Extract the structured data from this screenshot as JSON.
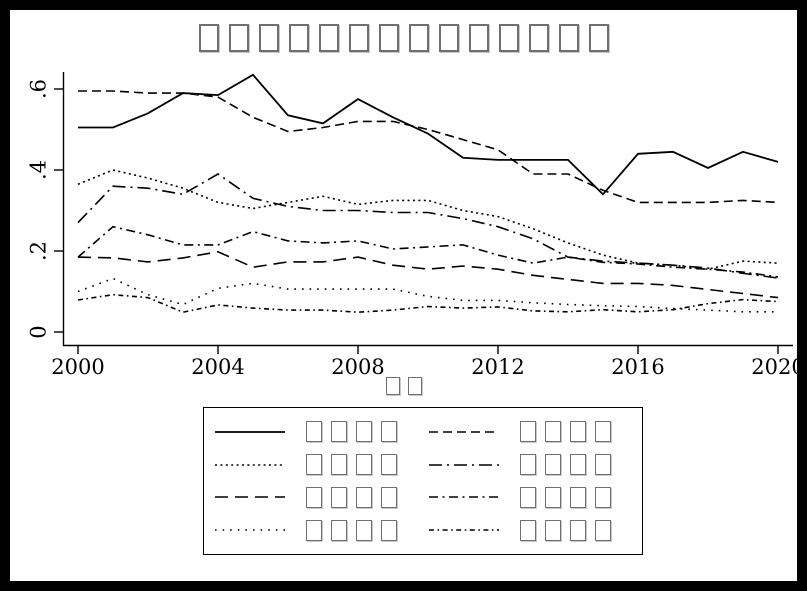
{
  "window": {
    "frame_color": "#000000",
    "canvas_color": "#ffffff"
  },
  "title": {
    "text": "□□□□□□□□□□□□□□"
  },
  "chart_data": {
    "type": "line",
    "title": "□□□□□□□□□□□□□□",
    "xlabel": "□□",
    "ylabel": "",
    "x": [
      2000,
      2001,
      2002,
      2003,
      2004,
      2005,
      2006,
      2007,
      2008,
      2009,
      2010,
      2011,
      2012,
      2013,
      2014,
      2015,
      2016,
      2017,
      2018,
      2019,
      2020
    ],
    "xticks": [
      2000,
      2004,
      2008,
      2012,
      2016,
      2020
    ],
    "xtick_labels": [
      "2000",
      "2004",
      "2008",
      "2012",
      "2016",
      "2020"
    ],
    "yticks": [
      0,
      0.2,
      0.4,
      0.6
    ],
    "ytick_labels": [
      "0",
      ".2",
      ".4",
      ".6"
    ],
    "ylim": [
      0,
      0.66
    ],
    "xlim": [
      2000,
      2020
    ],
    "grid": false,
    "line_color": "#000000",
    "legend_position": "bottom-box",
    "series": [
      {
        "name": "□□□□",
        "pattern": "solid",
        "values": [
          0.505,
          0.505,
          0.54,
          0.59,
          0.585,
          0.635,
          0.535,
          0.515,
          0.575,
          0.53,
          0.49,
          0.43,
          0.425,
          0.425,
          0.425,
          0.34,
          0.44,
          0.445,
          0.405,
          0.445,
          0.42
        ]
      },
      {
        "name": "□□□□",
        "pattern": "dash",
        "values": [
          0.595,
          0.595,
          0.59,
          0.59,
          0.58,
          0.53,
          0.495,
          0.505,
          0.52,
          0.52,
          0.5,
          0.475,
          0.45,
          0.39,
          0.39,
          0.35,
          0.32,
          0.32,
          0.32,
          0.325,
          0.32
        ]
      },
      {
        "name": "□□□□",
        "pattern": "dot",
        "values": [
          0.365,
          0.4,
          0.38,
          0.355,
          0.32,
          0.305,
          0.32,
          0.335,
          0.315,
          0.325,
          0.325,
          0.3,
          0.285,
          0.255,
          0.22,
          0.19,
          0.17,
          0.165,
          0.155,
          0.175,
          0.17
        ]
      },
      {
        "name": "□□□□",
        "pattern": "longdash-dot",
        "values": [
          0.27,
          0.36,
          0.355,
          0.34,
          0.39,
          0.33,
          0.31,
          0.3,
          0.3,
          0.295,
          0.295,
          0.28,
          0.26,
          0.23,
          0.185,
          0.175,
          0.17,
          0.165,
          0.158,
          0.145,
          0.133
        ]
      },
      {
        "name": "□□□□",
        "pattern": "longdash",
        "values": [
          0.185,
          0.183,
          0.173,
          0.183,
          0.198,
          0.16,
          0.173,
          0.173,
          0.185,
          0.165,
          0.155,
          0.163,
          0.155,
          0.14,
          0.13,
          0.12,
          0.12,
          0.115,
          0.105,
          0.095,
          0.085
        ]
      },
      {
        "name": "□□□□",
        "pattern": "dash-dot",
        "values": [
          0.185,
          0.26,
          0.24,
          0.215,
          0.215,
          0.248,
          0.225,
          0.22,
          0.225,
          0.205,
          0.21,
          0.215,
          0.19,
          0.17,
          0.185,
          0.172,
          0.168,
          0.16,
          0.155,
          0.148,
          0.136
        ]
      },
      {
        "name": "□□□□",
        "pattern": "sparse-dot",
        "values": [
          0.1,
          0.132,
          0.092,
          0.068,
          0.108,
          0.12,
          0.106,
          0.106,
          0.106,
          0.106,
          0.088,
          0.078,
          0.078,
          0.072,
          0.068,
          0.065,
          0.063,
          0.058,
          0.054,
          0.05,
          0.05
        ]
      },
      {
        "name": "□□□□",
        "pattern": "shortdash-dot",
        "values": [
          0.079,
          0.092,
          0.085,
          0.049,
          0.067,
          0.059,
          0.054,
          0.054,
          0.049,
          0.054,
          0.063,
          0.059,
          0.062,
          0.052,
          0.05,
          0.055,
          0.05,
          0.055,
          0.07,
          0.08,
          0.075
        ]
      }
    ]
  }
}
